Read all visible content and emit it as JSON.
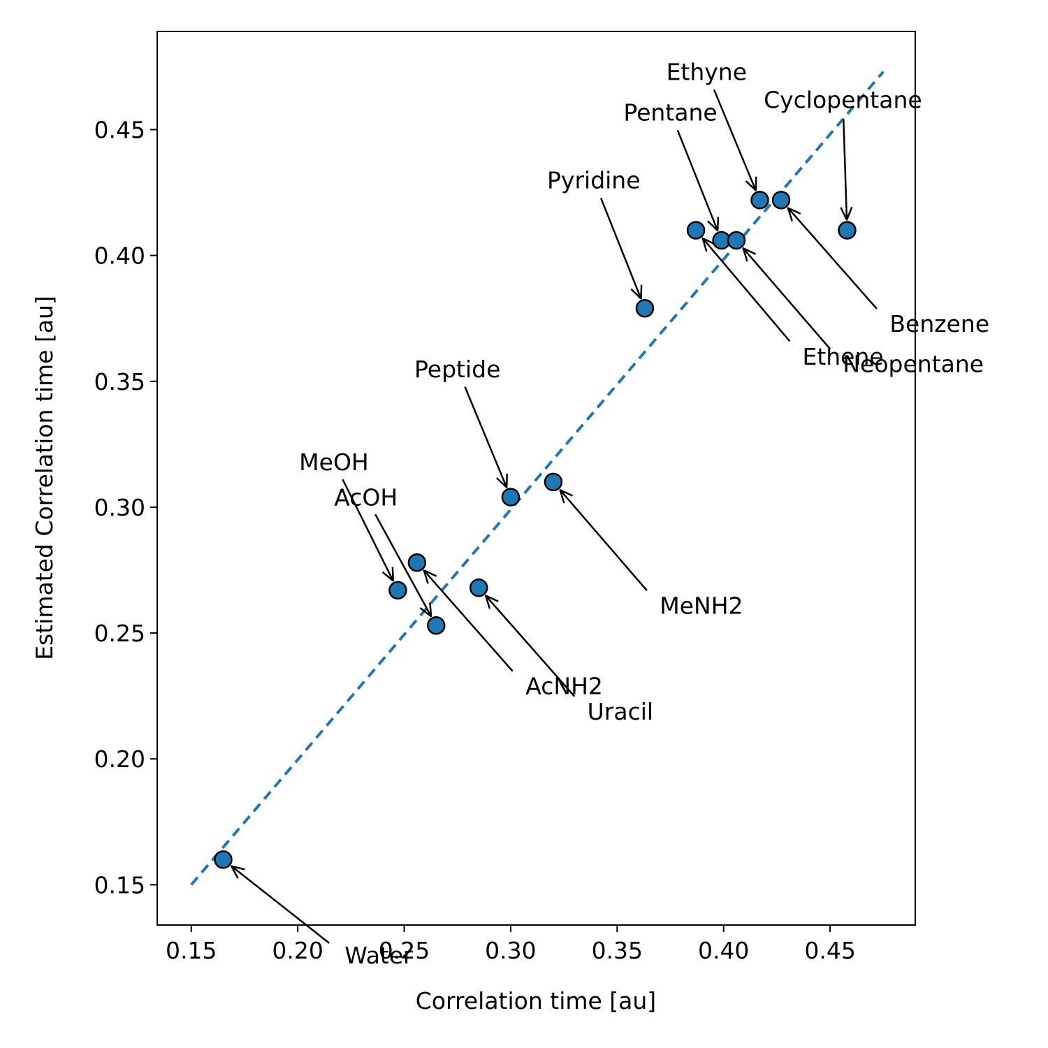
{
  "chart_data": {
    "type": "scatter",
    "xlabel": "Correlation time [au]",
    "ylabel": "Estimated Correlation time [au]",
    "xlim": [
      0.134,
      0.49
    ],
    "ylim": [
      0.134,
      0.489
    ],
    "xticks": [
      "0.15",
      "0.20",
      "0.25",
      "0.30",
      "0.35",
      "0.40",
      "0.45"
    ],
    "yticks": [
      "0.15",
      "0.20",
      "0.25",
      "0.30",
      "0.35",
      "0.40",
      "0.45"
    ],
    "grid": false,
    "reference_line": {
      "style": "dashed",
      "from": [
        0.15,
        0.15
      ],
      "to": [
        0.475,
        0.473
      ]
    },
    "marker_color": "#1f77b4",
    "line_color": "#1f77b4",
    "points": [
      {
        "label": "Water",
        "x": 0.165,
        "y": 0.16,
        "lx": 0.222,
        "ly": 0.122,
        "anchor": "start"
      },
      {
        "label": "MeOH",
        "x": 0.247,
        "y": 0.267,
        "lx": 0.217,
        "ly": 0.318,
        "anchor": "middle"
      },
      {
        "label": "AcOH",
        "x": 0.265,
        "y": 0.253,
        "lx": 0.232,
        "ly": 0.304,
        "anchor": "middle"
      },
      {
        "label": "AcNH2",
        "x": 0.256,
        "y": 0.278,
        "lx": 0.307,
        "ly": 0.229,
        "anchor": "start"
      },
      {
        "label": "Uracil",
        "x": 0.285,
        "y": 0.268,
        "lx": 0.336,
        "ly": 0.219,
        "anchor": "start"
      },
      {
        "label": "Peptide",
        "x": 0.3,
        "y": 0.304,
        "lx": 0.275,
        "ly": 0.355,
        "anchor": "middle"
      },
      {
        "label": "MeNH2",
        "x": 0.32,
        "y": 0.31,
        "lx": 0.37,
        "ly": 0.261,
        "anchor": "start"
      },
      {
        "label": "Pyridine",
        "x": 0.363,
        "y": 0.379,
        "lx": 0.339,
        "ly": 0.43,
        "anchor": "middle"
      },
      {
        "label": "Ethene",
        "x": 0.387,
        "y": 0.41,
        "lx": 0.437,
        "ly": 0.36,
        "anchor": "start"
      },
      {
        "label": "Pentane",
        "x": 0.399,
        "y": 0.406,
        "lx": 0.375,
        "ly": 0.457,
        "anchor": "middle"
      },
      {
        "label": "Neopentane",
        "x": 0.406,
        "y": 0.406,
        "lx": 0.456,
        "ly": 0.357,
        "anchor": "start"
      },
      {
        "label": "Ethyne",
        "x": 0.417,
        "y": 0.422,
        "lx": 0.392,
        "ly": 0.473,
        "anchor": "middle"
      },
      {
        "label": "Benzene",
        "x": 0.427,
        "y": 0.422,
        "lx": 0.478,
        "ly": 0.373,
        "anchor": "start"
      },
      {
        "label": "Cyclopentane",
        "x": 0.458,
        "y": 0.41,
        "lx": 0.456,
        "ly": 0.462,
        "anchor": "middle"
      }
    ]
  }
}
